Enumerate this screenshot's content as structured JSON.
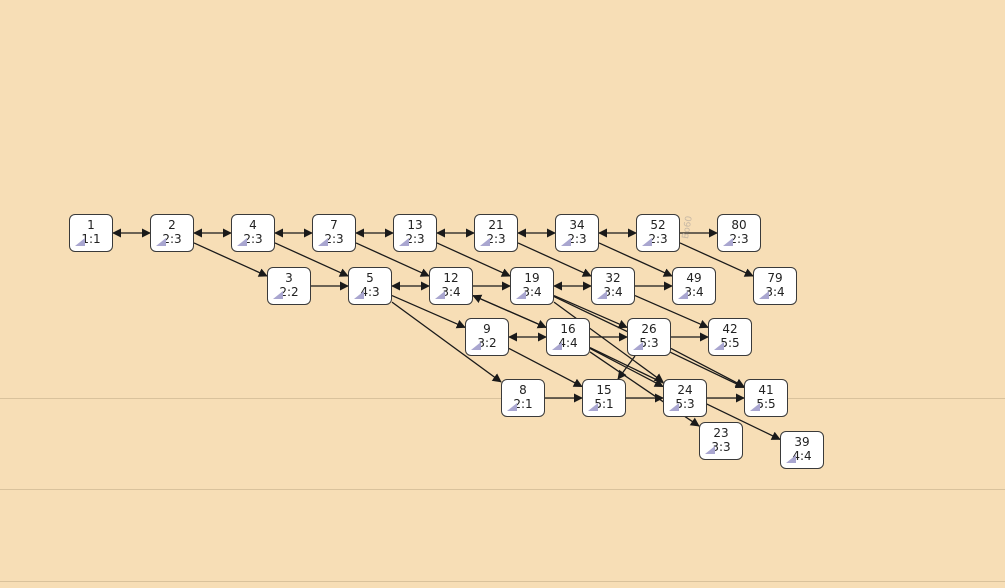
{
  "colors": {
    "background": "#f7deb6",
    "node_fill": "#ffffff",
    "node_border": "#3a3a3a",
    "edge": "#1a1a1a",
    "node_icon": "#a9a6d0"
  },
  "watermark": "Bo60",
  "nodes": [
    {
      "id": "1",
      "label": "1:1"
    },
    {
      "id": "2",
      "label": "2:3"
    },
    {
      "id": "4",
      "label": "2:3"
    },
    {
      "id": "7",
      "label": "2:3"
    },
    {
      "id": "13",
      "label": "2:3"
    },
    {
      "id": "21",
      "label": "2:3"
    },
    {
      "id": "34",
      "label": "2:3"
    },
    {
      "id": "52",
      "label": "2:3"
    },
    {
      "id": "80",
      "label": "2:3"
    },
    {
      "id": "3",
      "label": "2:2"
    },
    {
      "id": "5",
      "label": "4:3"
    },
    {
      "id": "12",
      "label": "3:4"
    },
    {
      "id": "19",
      "label": "3:4"
    },
    {
      "id": "32",
      "label": "3:4"
    },
    {
      "id": "49",
      "label": "3:4"
    },
    {
      "id": "79",
      "label": "3:4"
    },
    {
      "id": "9",
      "label": "3:2"
    },
    {
      "id": "16",
      "label": "4:4"
    },
    {
      "id": "26",
      "label": "5:3"
    },
    {
      "id": "42",
      "label": "5:5"
    },
    {
      "id": "8",
      "label": "2:1"
    },
    {
      "id": "15",
      "label": "5:1"
    },
    {
      "id": "24",
      "label": "5:3"
    },
    {
      "id": "41",
      "label": "5:5"
    },
    {
      "id": "23",
      "label": "3:3"
    },
    {
      "id": "39",
      "label": "4:4"
    }
  ],
  "edges": [
    {
      "from": "1",
      "to": "2",
      "both": true
    },
    {
      "from": "2",
      "to": "4",
      "both": true
    },
    {
      "from": "4",
      "to": "7",
      "both": true
    },
    {
      "from": "7",
      "to": "13",
      "both": true
    },
    {
      "from": "13",
      "to": "21",
      "both": true
    },
    {
      "from": "21",
      "to": "34",
      "both": true
    },
    {
      "from": "34",
      "to": "52",
      "both": true
    },
    {
      "from": "52",
      "to": "80",
      "both": false
    },
    {
      "from": "2",
      "to": "3",
      "both": false
    },
    {
      "from": "4",
      "to": "5",
      "both": false
    },
    {
      "from": "7",
      "to": "12",
      "both": false
    },
    {
      "from": "13",
      "to": "19",
      "both": false
    },
    {
      "from": "21",
      "to": "32",
      "both": false
    },
    {
      "from": "34",
      "to": "49",
      "both": false
    },
    {
      "from": "52",
      "to": "79",
      "both": false
    },
    {
      "from": "3",
      "to": "5",
      "both": false
    },
    {
      "from": "5",
      "to": "12",
      "both": true
    },
    {
      "from": "12",
      "to": "19",
      "both": false
    },
    {
      "from": "19",
      "to": "32",
      "both": true
    },
    {
      "from": "32",
      "to": "49",
      "both": false
    },
    {
      "from": "5",
      "to": "9",
      "both": false
    },
    {
      "from": "5",
      "to": "8",
      "both": false
    },
    {
      "from": "12",
      "to": "16",
      "both": false
    },
    {
      "from": "16",
      "to": "12",
      "both": false
    },
    {
      "from": "9",
      "to": "16",
      "both": true
    },
    {
      "from": "16",
      "to": "26",
      "both": false
    },
    {
      "from": "19",
      "to": "26",
      "both": false
    },
    {
      "from": "19",
      "to": "24",
      "both": false
    },
    {
      "from": "19",
      "to": "41",
      "both": false
    },
    {
      "from": "32",
      "to": "42",
      "both": false
    },
    {
      "from": "26",
      "to": "42",
      "both": false
    },
    {
      "from": "26",
      "to": "41",
      "both": false
    },
    {
      "from": "26",
      "to": "15",
      "both": false
    },
    {
      "from": "16",
      "to": "24",
      "both": false
    },
    {
      "from": "16",
      "to": "23",
      "both": false
    },
    {
      "from": "16",
      "to": "39",
      "both": false
    },
    {
      "from": "9",
      "to": "15",
      "both": false
    },
    {
      "from": "8",
      "to": "15",
      "both": false
    },
    {
      "from": "15",
      "to": "24",
      "both": false
    },
    {
      "from": "24",
      "to": "41",
      "both": false
    }
  ]
}
